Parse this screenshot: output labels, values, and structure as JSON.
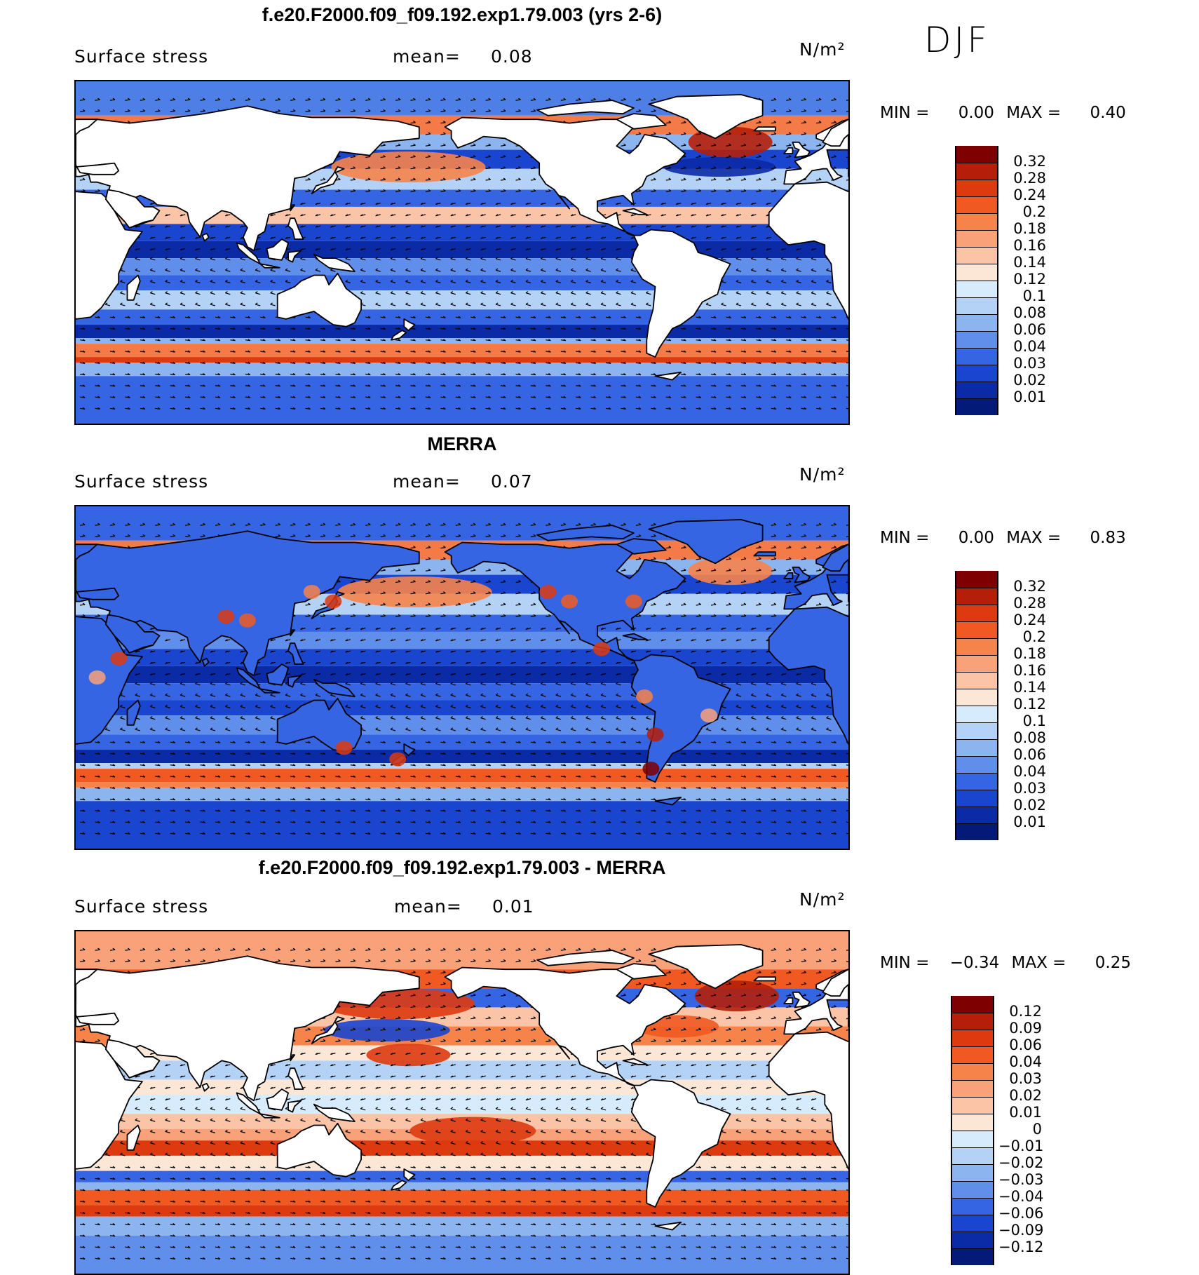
{
  "season": "DJF",
  "units": "N/m²",
  "panels": [
    {
      "title": "f.e20.F2000.f09_f09.192.exp1.79.003 (yrs 2-6)",
      "variable": "Surface stress",
      "mean_label": "mean=",
      "mean_value": "0.08",
      "units": "N/m²",
      "min_label": "MIN =",
      "min_value": "0.00",
      "max_label": "MAX =",
      "max_value": "0.40",
      "colorbar": {
        "labels": [
          "0.32",
          "0.28",
          "0.24",
          "0.2",
          "0.18",
          "0.16",
          "0.14",
          "0.12",
          "0.1",
          "0.08",
          "0.06",
          "0.04",
          "0.03",
          "0.02",
          "0.01"
        ],
        "colors": [
          "#7f0000",
          "#b51f0a",
          "#dd3a10",
          "#f05a22",
          "#f6834a",
          "#f9a27a",
          "#fbc4a6",
          "#fce6d6",
          "#d6ebfb",
          "#b4d2f5",
          "#8cb5ef",
          "#5f8fea",
          "#3565e3",
          "#1a45cf",
          "#0b2aa6",
          "#041a78"
        ]
      }
    },
    {
      "title": "MERRA",
      "variable": "Surface stress",
      "mean_label": "mean=",
      "mean_value": "0.07",
      "units": "N/m²",
      "min_label": "MIN =",
      "min_value": "0.00",
      "max_label": "MAX =",
      "max_value": "0.83",
      "colorbar": {
        "labels": [
          "0.32",
          "0.28",
          "0.24",
          "0.2",
          "0.18",
          "0.16",
          "0.14",
          "0.12",
          "0.1",
          "0.08",
          "0.06",
          "0.04",
          "0.03",
          "0.02",
          "0.01"
        ],
        "colors": [
          "#7f0000",
          "#b51f0a",
          "#dd3a10",
          "#f05a22",
          "#f6834a",
          "#f9a27a",
          "#fbc4a6",
          "#fce6d6",
          "#d6ebfb",
          "#b4d2f5",
          "#8cb5ef",
          "#5f8fea",
          "#3565e3",
          "#1a45cf",
          "#0b2aa6",
          "#041a78"
        ]
      }
    },
    {
      "title": "f.e20.F2000.f09_f09.192.exp1.79.003 - MERRA",
      "variable": "Surface stress",
      "mean_label": "mean=",
      "mean_value": "0.01",
      "units": "N/m²",
      "min_label": "MIN =",
      "min_value": "−0.34",
      "max_label": "MAX =",
      "max_value": "0.25",
      "colorbar": {
        "labels": [
          "0.12",
          "0.09",
          "0.06",
          "0.04",
          "0.03",
          "0.02",
          "0.01",
          "0",
          "−0.01",
          "−0.02",
          "−0.03",
          "−0.04",
          "−0.06",
          "−0.09",
          "−0.12"
        ],
        "colors": [
          "#7f0000",
          "#b51f0a",
          "#dd3a10",
          "#f05a22",
          "#f6834a",
          "#f9a27a",
          "#fbc4a6",
          "#fce6d6",
          "#d6ebfb",
          "#b4d2f5",
          "#8cb5ef",
          "#5f8fea",
          "#3565e3",
          "#1a45cf",
          "#0b2aa6",
          "#041a78"
        ]
      }
    }
  ]
}
